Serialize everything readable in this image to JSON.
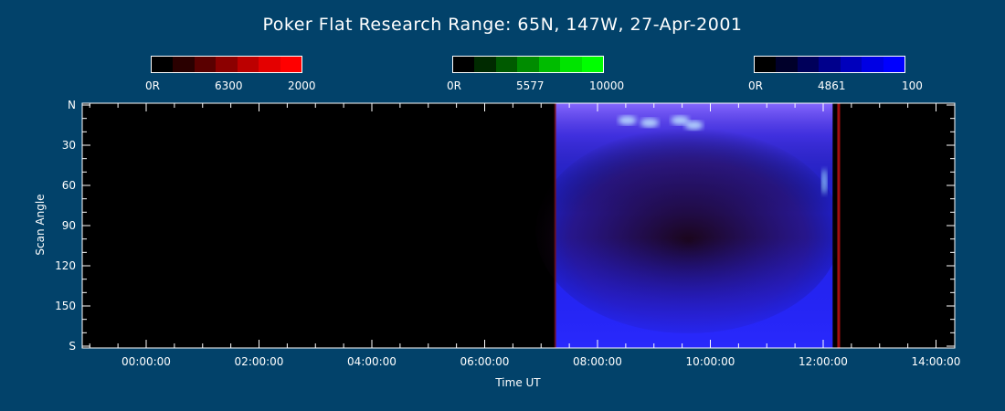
{
  "chart_data": {
    "type": "heatmap",
    "title": "Poker Flat Research Range: 65N, 147W, 27-Apr-2001",
    "xlabel": "Time UT",
    "ylabel": "Scan Angle",
    "x_ticks": [
      "00:00:00",
      "02:00:00",
      "04:00:00",
      "06:00:00",
      "08:00:00",
      "10:00:00",
      "12:00:00",
      "14:00:00"
    ],
    "y_ticks": [
      "N",
      "30",
      "60",
      "90",
      "120",
      "150",
      "S"
    ],
    "y_range": [
      0,
      180
    ],
    "data_window": {
      "start": "07:15:00",
      "end": "12:10:00"
    },
    "red_band": {
      "start": "12:15:00",
      "end": "12:18:00"
    },
    "colorbars": [
      {
        "name": "6300",
        "min_label": "0R",
        "max_label": "2000",
        "colors": [
          "#000000",
          "#2a0000",
          "#5a0000",
          "#8c0000",
          "#bc0000",
          "#e40000",
          "#ff0000"
        ]
      },
      {
        "name": "5577",
        "min_label": "0R",
        "max_label": "10000",
        "colors": [
          "#000000",
          "#002a00",
          "#005a00",
          "#008c00",
          "#00bc00",
          "#00e400",
          "#00ff00"
        ]
      },
      {
        "name": "4861",
        "min_label": "0R",
        "max_label": "100",
        "colors": [
          "#000000",
          "#00002a",
          "#00005a",
          "#00008c",
          "#0000bc",
          "#0000e4",
          "#0000ff"
        ]
      }
    ]
  }
}
